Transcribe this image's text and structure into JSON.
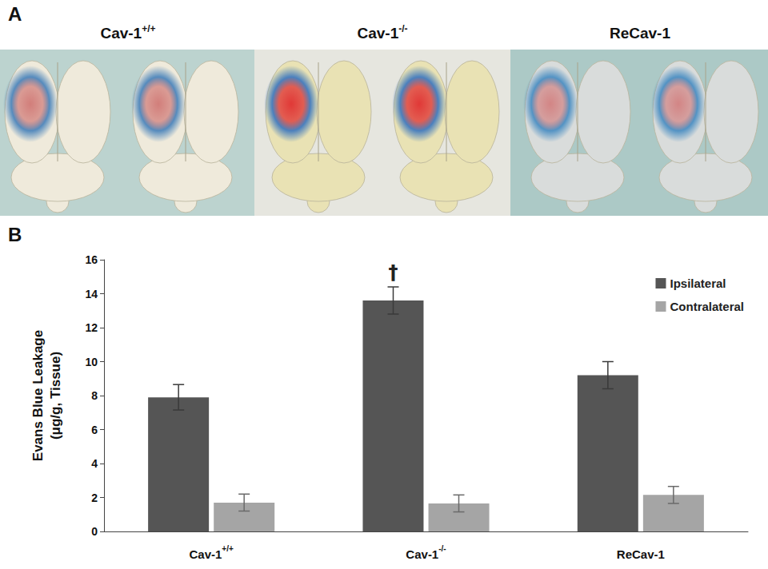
{
  "panel_a": {
    "letter": "A",
    "titles": [
      "Cav-1+/+",
      "Cav-1-/-",
      "ReCav-1"
    ]
  },
  "panel_b": {
    "letter": "B"
  },
  "chart_data": {
    "type": "bar",
    "categories": [
      "Cav-1+/+",
      "Cav-1-/-",
      "ReCav-1"
    ],
    "ylabel": "Evans Blue Leakage (μg/g, Tissue)",
    "ylim": [
      0,
      16
    ],
    "yticks": [
      0,
      2,
      4,
      6,
      8,
      10,
      12,
      14,
      16
    ],
    "grid": false,
    "legend": "upper right",
    "series": [
      {
        "name": "Ipsilateral",
        "color": "#555555",
        "values": [
          7.9,
          13.6,
          9.2
        ],
        "errors": [
          0.75,
          0.8,
          0.8
        ]
      },
      {
        "name": "Contralateral",
        "color": "#a5a5a5",
        "values": [
          1.7,
          1.65,
          2.15
        ],
        "errors": [
          0.5,
          0.5,
          0.5
        ]
      }
    ],
    "annotations": [
      {
        "text": "†",
        "category": "Cav-1-/-",
        "series": "Ipsilateral"
      }
    ]
  }
}
